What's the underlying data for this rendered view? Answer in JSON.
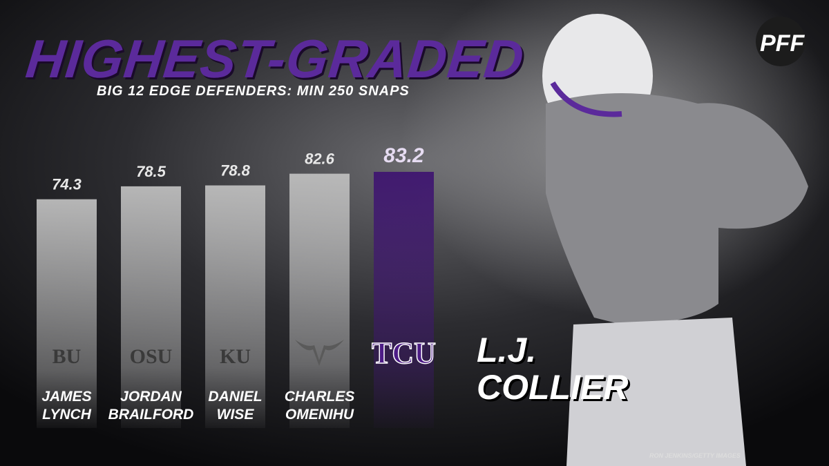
{
  "chart_data": {
    "type": "bar",
    "title": "HIGHEST-GRADED",
    "subtitle": "BIG 12 EDGE DEFENDERS: MIN 250 SNAPS",
    "categories": [
      "JAMES\nLYNCH",
      "JORDAN\nBRAILFORD",
      "DANIEL\nWISE",
      "CHARLES\nOMENIHU",
      null
    ],
    "team_logos": [
      "BU",
      "OSU",
      "KU",
      null,
      "TCU"
    ],
    "values": [
      74.3,
      78.5,
      78.8,
      82.6,
      83.2
    ],
    "colors": [
      "#bdbdbd",
      "#bdbdbd",
      "#bdbdbd",
      "#bdbdbd",
      "#3f1670"
    ],
    "ylim": [
      0,
      90
    ],
    "highlight_name": "L.J.\nCOLLIER",
    "brand": "PFF",
    "credit": "RON JENKINS/GETTY IMAGES"
  }
}
